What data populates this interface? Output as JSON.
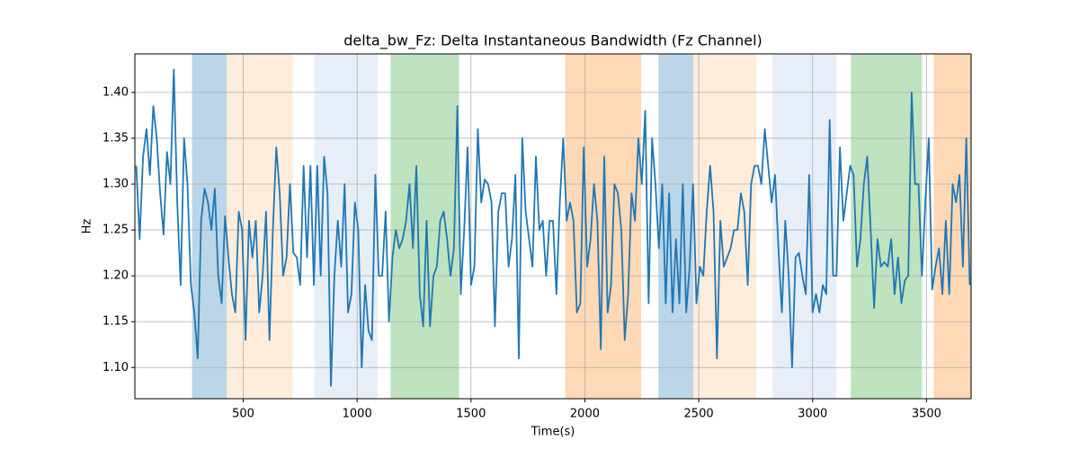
{
  "chart_data": {
    "type": "line",
    "title": "delta_bw_Fz: Delta Instantaneous Bandwidth (Fz Channel)",
    "xlabel": "Time(s)",
    "ylabel": "Hz",
    "color": "#1f77b4",
    "grid": true,
    "xlim": [
      24,
      3696
    ],
    "ylim": [
      1.066,
      1.442
    ],
    "xticks": [
      500,
      1000,
      1500,
      2000,
      2500,
      3000,
      3500
    ],
    "yticks": [
      {
        "value": 1.1,
        "label": "1.10"
      },
      {
        "value": 1.15,
        "label": "1.15"
      },
      {
        "value": 1.2,
        "label": "1.20"
      },
      {
        "value": 1.25,
        "label": "1.25"
      },
      {
        "value": 1.3,
        "label": "1.30"
      },
      {
        "value": 1.35,
        "label": "1.35"
      },
      {
        "value": 1.4,
        "label": "1.40"
      }
    ],
    "spans": [
      {
        "start": 275,
        "end": 428,
        "color": "#1f77b4",
        "opacity": 0.3
      },
      {
        "start": 428,
        "end": 717,
        "color": "#ff7f0e",
        "opacity": 0.15
      },
      {
        "start": 813,
        "end": 1090,
        "color": "#aec7e8",
        "opacity": 0.3
      },
      {
        "start": 1147,
        "end": 1448,
        "color": "#2ca02c",
        "opacity": 0.3
      },
      {
        "start": 1914,
        "end": 2247,
        "color": "#ff7f0e",
        "opacity": 0.3
      },
      {
        "start": 2323,
        "end": 2476,
        "color": "#1f77b4",
        "opacity": 0.3
      },
      {
        "start": 2476,
        "end": 2753,
        "color": "#ff7f0e",
        "opacity": 0.15
      },
      {
        "start": 2825,
        "end": 3104,
        "color": "#aec7e8",
        "opacity": 0.3
      },
      {
        "start": 3168,
        "end": 3480,
        "color": "#2ca02c",
        "opacity": 0.3
      },
      {
        "start": 3532,
        "end": 3761,
        "color": "#ff7f0e",
        "opacity": 0.3
      }
    ],
    "x": [
      30,
      45,
      60,
      75,
      90,
      105,
      120,
      135,
      150,
      165,
      180,
      195,
      210,
      225,
      240,
      255,
      270,
      285,
      300,
      315,
      330,
      345,
      360,
      375,
      390,
      405,
      420,
      435,
      450,
      465,
      480,
      495,
      510,
      525,
      540,
      555,
      570,
      585,
      600,
      615,
      630,
      645,
      660,
      675,
      690,
      705,
      720,
      735,
      750,
      765,
      780,
      795,
      810,
      825,
      840,
      855,
      870,
      885,
      900,
      915,
      930,
      945,
      960,
      975,
      990,
      1005,
      1020,
      1035,
      1050,
      1065,
      1080,
      1095,
      1110,
      1125,
      1140,
      1155,
      1170,
      1185,
      1200,
      1215,
      1230,
      1245,
      1260,
      1275,
      1290,
      1305,
      1320,
      1335,
      1350,
      1365,
      1380,
      1395,
      1410,
      1425,
      1440,
      1455,
      1470,
      1485,
      1500,
      1515,
      1530,
      1545,
      1560,
      1575,
      1590,
      1605,
      1620,
      1635,
      1650,
      1665,
      1680,
      1695,
      1710,
      1725,
      1740,
      1755,
      1770,
      1785,
      1800,
      1815,
      1830,
      1845,
      1860,
      1875,
      1890,
      1905,
      1920,
      1935,
      1950,
      1965,
      1980,
      1995,
      2010,
      2025,
      2040,
      2055,
      2070,
      2085,
      2100,
      2115,
      2130,
      2145,
      2160,
      2175,
      2190,
      2205,
      2220,
      2235,
      2250,
      2265,
      2280,
      2295,
      2310,
      2325,
      2340,
      2355,
      2370,
      2385,
      2400,
      2415,
      2430,
      2445,
      2460,
      2475,
      2490,
      2505,
      2520,
      2535,
      2550,
      2565,
      2580,
      2595,
      2610,
      2625,
      2640,
      2655,
      2670,
      2685,
      2700,
      2715,
      2730,
      2745,
      2760,
      2775,
      2790,
      2805,
      2820,
      2835,
      2850,
      2865,
      2880,
      2895,
      2910,
      2925,
      2940,
      2955,
      2970,
      2985,
      3000,
      3015,
      3030,
      3045,
      3060,
      3075,
      3090,
      3105,
      3120,
      3135,
      3150,
      3165,
      3180,
      3195,
      3210,
      3225,
      3240,
      3255,
      3270,
      3285,
      3300,
      3315,
      3330,
      3345,
      3360,
      3375,
      3390,
      3405,
      3420,
      3435,
      3450,
      3465,
      3480,
      3495,
      3510,
      3525,
      3540,
      3555,
      3570,
      3585,
      3600,
      3615,
      3630,
      3645,
      3660,
      3675,
      3690
    ],
    "values": [
      1.32,
      1.24,
      1.33,
      1.36,
      1.31,
      1.385,
      1.35,
      1.29,
      1.245,
      1.335,
      1.3,
      1.425,
      1.28,
      1.19,
      1.35,
      1.3,
      1.19,
      1.16,
      1.11,
      1.26,
      1.295,
      1.28,
      1.25,
      1.295,
      1.2,
      1.17,
      1.265,
      1.22,
      1.18,
      1.16,
      1.27,
      1.25,
      1.13,
      1.26,
      1.22,
      1.26,
      1.16,
      1.2,
      1.27,
      1.13,
      1.25,
      1.34,
      1.29,
      1.2,
      1.22,
      1.3,
      1.225,
      1.22,
      1.19,
      1.32,
      1.22,
      1.32,
      1.19,
      1.32,
      1.2,
      1.33,
      1.29,
      1.08,
      1.2,
      1.26,
      1.21,
      1.3,
      1.16,
      1.18,
      1.28,
      1.25,
      1.1,
      1.19,
      1.14,
      1.13,
      1.31,
      1.2,
      1.2,
      1.27,
      1.15,
      1.22,
      1.25,
      1.23,
      1.24,
      1.26,
      1.3,
      1.23,
      1.32,
      1.18,
      1.145,
      1.26,
      1.145,
      1.2,
      1.21,
      1.26,
      1.27,
      1.24,
      1.2,
      1.23,
      1.385,
      1.18,
      1.25,
      1.34,
      1.19,
      1.21,
      1.36,
      1.28,
      1.305,
      1.3,
      1.28,
      1.145,
      1.27,
      1.29,
      1.29,
      1.21,
      1.24,
      1.31,
      1.11,
      1.35,
      1.27,
      1.24,
      1.21,
      1.33,
      1.25,
      1.26,
      1.2,
      1.26,
      1.26,
      1.18,
      1.28,
      1.35,
      1.26,
      1.28,
      1.26,
      1.16,
      1.17,
      1.34,
      1.21,
      1.24,
      1.3,
      1.26,
      1.12,
      1.33,
      1.16,
      1.19,
      1.3,
      1.29,
      1.25,
      1.13,
      1.18,
      1.29,
      1.26,
      1.35,
      1.3,
      1.38,
      1.17,
      1.35,
      1.3,
      1.23,
      1.3,
      1.17,
      1.29,
      1.16,
      1.24,
      1.17,
      1.3,
      1.16,
      1.21,
      1.3,
      1.17,
      1.21,
      1.2,
      1.27,
      1.32,
      1.27,
      1.11,
      1.26,
      1.21,
      1.22,
      1.23,
      1.25,
      1.25,
      1.29,
      1.27,
      1.19,
      1.3,
      1.32,
      1.32,
      1.3,
      1.36,
      1.32,
      1.28,
      1.31,
      1.23,
      1.16,
      1.26,
      1.2,
      1.1,
      1.22,
      1.225,
      1.2,
      1.18,
      1.31,
      1.16,
      1.18,
      1.16,
      1.19,
      1.18,
      1.37,
      1.2,
      1.2,
      1.34,
      1.26,
      1.29,
      1.32,
      1.31,
      1.21,
      1.24,
      1.3,
      1.33,
      1.25,
      1.165,
      1.24,
      1.21,
      1.215,
      1.21,
      1.24,
      1.18,
      1.22,
      1.17,
      1.195,
      1.2,
      1.4,
      1.3,
      1.3,
      1.2,
      1.28,
      1.35,
      1.185,
      1.21,
      1.23,
      1.18,
      1.26,
      1.18,
      1.3,
      1.28,
      1.31,
      1.21,
      1.35,
      1.19
    ]
  }
}
